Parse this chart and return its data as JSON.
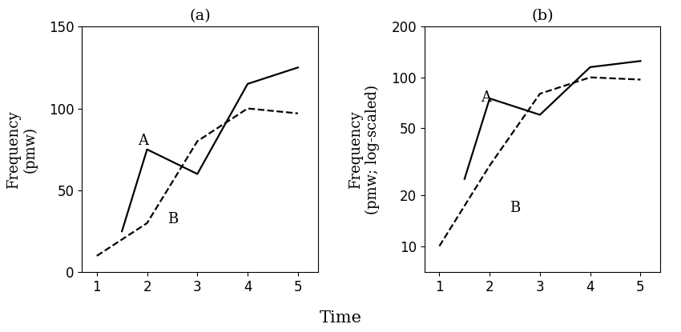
{
  "x_A": [
    1.5,
    2,
    3,
    4,
    5
  ],
  "x_B": [
    1,
    2,
    3,
    4,
    5
  ],
  "A": [
    25,
    75,
    60,
    115,
    125
  ],
  "B": [
    10,
    30,
    80,
    100,
    97
  ],
  "xlabel": "Time",
  "ylabel_a": "Frequency\n(pmw)",
  "ylabel_b": "Frequency\n(pmw; log-scaled)",
  "label_a": "(a)",
  "label_b": "(b)",
  "annotation_A_a": "A",
  "annotation_B_a": "B",
  "annotation_A_b": "A",
  "annotation_B_b": "B",
  "ylim_a": [
    0,
    150
  ],
  "yticks_a": [
    0,
    50,
    100,
    150
  ],
  "ylim_b_log": [
    7,
    200
  ],
  "yticks_b": [
    10,
    20,
    50,
    100,
    200
  ],
  "xlim": [
    0.7,
    5.4
  ],
  "xticks": [
    1,
    2,
    3,
    4,
    5
  ],
  "line_color": "#000000",
  "bg_color": "#ffffff",
  "title_fontsize": 14,
  "label_fontsize": 13,
  "tick_fontsize": 12,
  "annot_fontsize": 13
}
